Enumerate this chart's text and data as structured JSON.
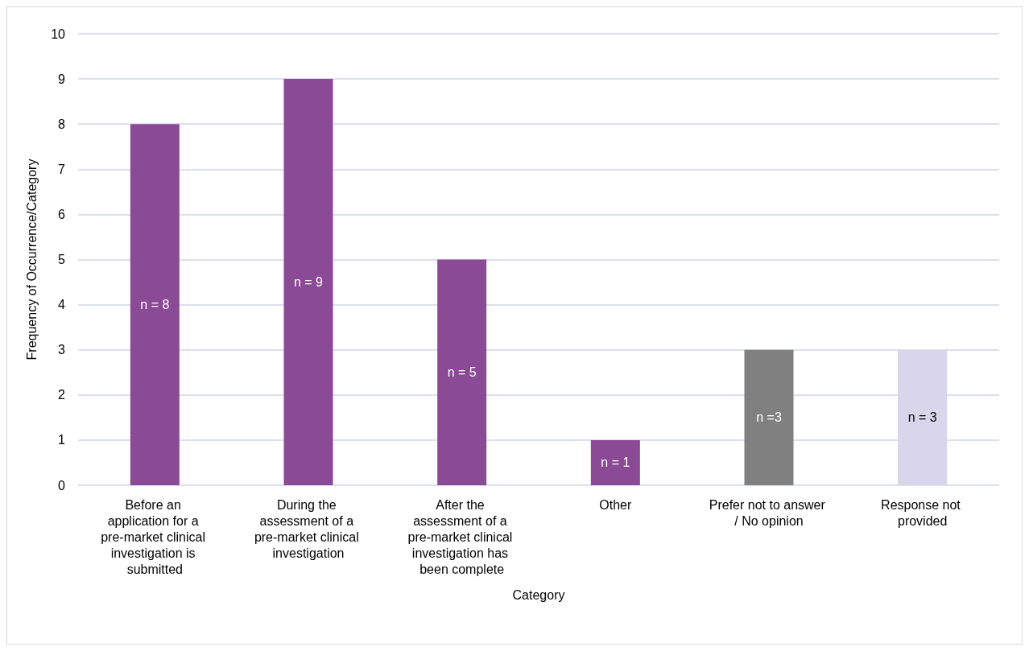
{
  "chart_data": {
    "type": "bar",
    "xlabel": "Category",
    "ylabel": "Frequency of Occurrence/Category",
    "categories": [
      "Before an application for a pre-market clinical investigation is submitted",
      "During the assessment of a pre-market clinical investigation",
      "After the assessment of a pre-market clinical investigation has been complete",
      "Other",
      "Prefer not to answer / No opinion",
      "Response not provided"
    ],
    "values": [
      8,
      9,
      5,
      1,
      3,
      3
    ],
    "colors": [
      "#8b4a96",
      "#8b4a96",
      "#8b4a96",
      "#8b4a96",
      "#808080",
      "#d9d5ea"
    ],
    "value_labels": [
      "n = 8",
      "n = 9",
      "n = 5",
      "n = 1",
      "n =3",
      "n = 3"
    ],
    "ylim": [
      0,
      10
    ],
    "yticks": [
      0,
      1,
      2,
      3,
      4,
      5,
      6,
      7,
      8,
      9,
      10
    ],
    "grid": "y"
  }
}
